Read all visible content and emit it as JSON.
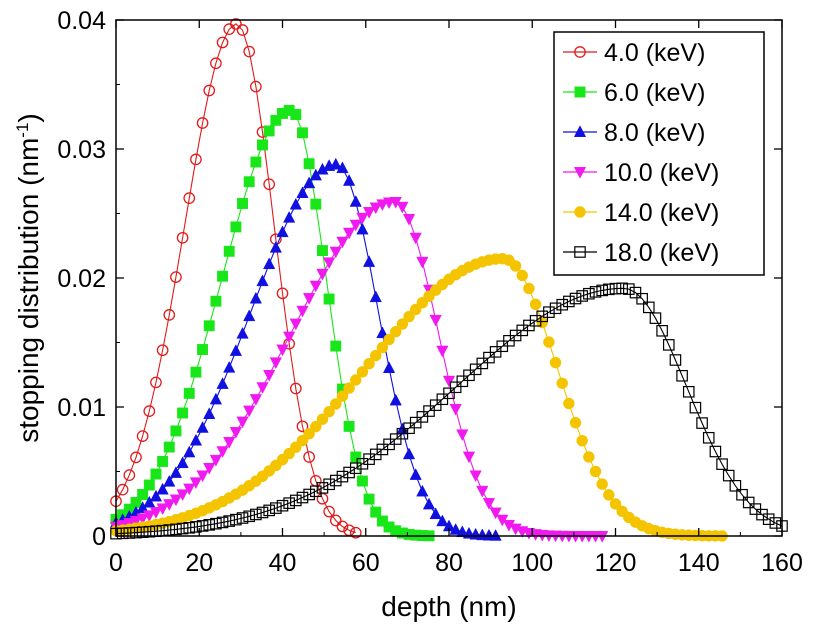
{
  "chart_data": {
    "type": "line",
    "title": "",
    "xlabel": "depth (nm)",
    "ylabel_main": "stopping distribution (nm",
    "ylabel_sup": "-1",
    "ylabel_close": ")",
    "xlim": [
      0,
      160
    ],
    "ylim": [
      0,
      0.04
    ],
    "xticks": [
      "0",
      "20",
      "40",
      "60",
      "80",
      "100",
      "120",
      "140",
      "160"
    ],
    "yticks": [
      "0",
      "0.01",
      "0.02",
      "0.03",
      "0.04"
    ],
    "legend_position": "top-right",
    "series": [
      {
        "name": "4.0 (keV)",
        "color": "#e11b1b",
        "marker": "open-circle",
        "mean": 29,
        "peak": 0.0397,
        "sigmaL": 12.5,
        "sigmaR": 9.0,
        "xmax": 58
      },
      {
        "name": "6.0 (keV)",
        "color": "#19e619",
        "marker": "filled-square",
        "mean": 42,
        "peak": 0.033,
        "sigmaL": 16.5,
        "sigmaR": 8.5,
        "xmax": 76
      },
      {
        "name": "8.0 (keV)",
        "color": "#1010e0",
        "marker": "triangle-up",
        "mean": 53,
        "peak": 0.0288,
        "sigmaL": 20.5,
        "sigmaR": 10.0,
        "xmax": 92
      },
      {
        "name": "10.0 (keV)",
        "color": "#f01af0",
        "marker": "triangle-down",
        "mean": 67,
        "peak": 0.0259,
        "sigmaL": 25.0,
        "sigmaR": 10.5,
        "xmax": 118
      },
      {
        "name": "14.0 (keV)",
        "color": "#f5c400",
        "marker": "filled-circle",
        "mean": 93,
        "peak": 0.0215,
        "sigmaL": 33.0,
        "sigmaR": 13.0,
        "xmax": 146
      },
      {
        "name": "18.0 (keV)",
        "color": "#000000",
        "marker": "open-square",
        "mean": 122,
        "peak": 0.0192,
        "sigmaL": 40.0,
        "sigmaR": 15.0,
        "xmax": 160
      }
    ]
  }
}
